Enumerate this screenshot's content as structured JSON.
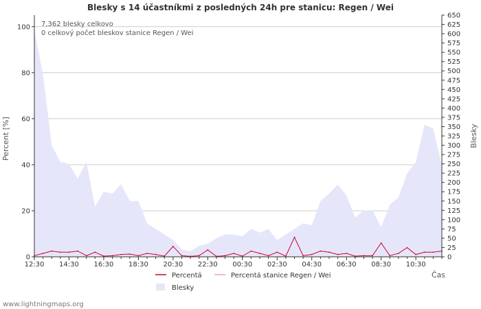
{
  "chart_data": {
    "type": "line",
    "title": "Blesky s 14 účastníkmi z posledných 24h pre stanicu: Regen / Wei",
    "xlabel": "Čas",
    "ylabel_left": "Percent   [%]",
    "ylabel_right": "Blesky",
    "ylim_left": [
      0,
      105
    ],
    "ylim_right": [
      0,
      650
    ],
    "yticks_left": [
      0,
      20,
      40,
      60,
      80,
      100
    ],
    "yticks_right": [
      0,
      25,
      50,
      75,
      100,
      125,
      150,
      175,
      200,
      225,
      250,
      275,
      300,
      325,
      350,
      375,
      400,
      425,
      450,
      475,
      500,
      525,
      550,
      575,
      600,
      625,
      650
    ],
    "x_tick_labels": [
      "12:30",
      "14:30",
      "16:30",
      "18:30",
      "20:30",
      "22:30",
      "00:30",
      "02:30",
      "04:30",
      "06:30",
      "08:30",
      "10:30"
    ],
    "x_tick_positions_hours": [
      0,
      2,
      4,
      6,
      8,
      10,
      12,
      14,
      16,
      18,
      20,
      22
    ],
    "x_range_hours": [
      0,
      23.5
    ],
    "annotations": [
      "7,362 blesky celkovo",
      "0 celkový počet bleskov stanice Regen / Wei"
    ],
    "series": [
      {
        "name": "Blesky",
        "axis": "right",
        "style": "area",
        "color": "#e6e6fa",
        "x_hours": [
          0,
          0.5,
          1,
          1.5,
          2,
          2.5,
          3,
          3.5,
          4,
          4.5,
          5,
          5.5,
          6,
          6.5,
          7,
          7.5,
          8,
          8.5,
          9,
          9.5,
          10,
          10.5,
          11,
          11.5,
          12,
          12.5,
          13,
          13.5,
          14,
          14.5,
          15,
          15.5,
          16,
          16.5,
          17,
          17.5,
          18,
          18.5,
          19,
          19.5,
          20,
          20.5,
          21,
          21.5,
          22,
          22.5,
          23,
          23.5
        ],
        "values": [
          610,
          490,
          300,
          255,
          250,
          210,
          255,
          135,
          175,
          170,
          195,
          150,
          150,
          90,
          75,
          60,
          45,
          20,
          15,
          30,
          35,
          50,
          60,
          60,
          55,
          75,
          65,
          75,
          45,
          60,
          75,
          90,
          85,
          150,
          170,
          195,
          165,
          105,
          125,
          125,
          80,
          140,
          160,
          225,
          255,
          355,
          345,
          245
        ]
      },
      {
        "name": "Percentá",
        "axis": "left",
        "style": "line",
        "color": "#cc0033",
        "x_hours": [
          0,
          0.5,
          1,
          1.5,
          2,
          2.5,
          3,
          3.5,
          4,
          4.5,
          5,
          5.5,
          6,
          6.5,
          7,
          7.5,
          8,
          8.5,
          9,
          9.5,
          10,
          10.5,
          11,
          11.5,
          12,
          12.5,
          13,
          13.5,
          14,
          14.5,
          15,
          15.5,
          16,
          16.5,
          17,
          17.5,
          18,
          18.5,
          19,
          19.5,
          20,
          20.5,
          21,
          21.5,
          22,
          22.5,
          23,
          23.5
        ],
        "values": [
          0.5,
          1.5,
          2.5,
          2.0,
          2.0,
          2.5,
          0.5,
          2.0,
          0.3,
          0.5,
          1.0,
          1.2,
          0.5,
          1.5,
          1.0,
          0.3,
          4.5,
          0.5,
          0.2,
          0.5,
          3.0,
          0.2,
          0.5,
          1.5,
          0.3,
          2.5,
          1.5,
          0.5,
          2.0,
          0.3,
          8.5,
          0.5,
          1.0,
          2.5,
          2.0,
          1.0,
          1.5,
          0.3,
          0.5,
          0.5,
          6.0,
          0.5,
          1.5,
          4.0,
          1.0,
          2.0,
          2.0,
          2.5
        ]
      },
      {
        "name": "Percentá stanice Regen / Wei",
        "axis": "left",
        "style": "line",
        "color": "#f4a0a8",
        "x_hours": [
          0,
          23.5
        ],
        "values": [
          0,
          0
        ]
      }
    ],
    "legend": {
      "position": "bottom",
      "entries": [
        {
          "label": "Percentá",
          "color": "#cc0033",
          "kind": "line"
        },
        {
          "label": "Percentá stanice Regen / Wei",
          "color": "#f4a0a8",
          "kind": "line"
        },
        {
          "label": "Blesky",
          "color": "#e6e6fa",
          "kind": "area"
        }
      ]
    },
    "grid": true,
    "footer": "www.lightningmaps.org"
  }
}
